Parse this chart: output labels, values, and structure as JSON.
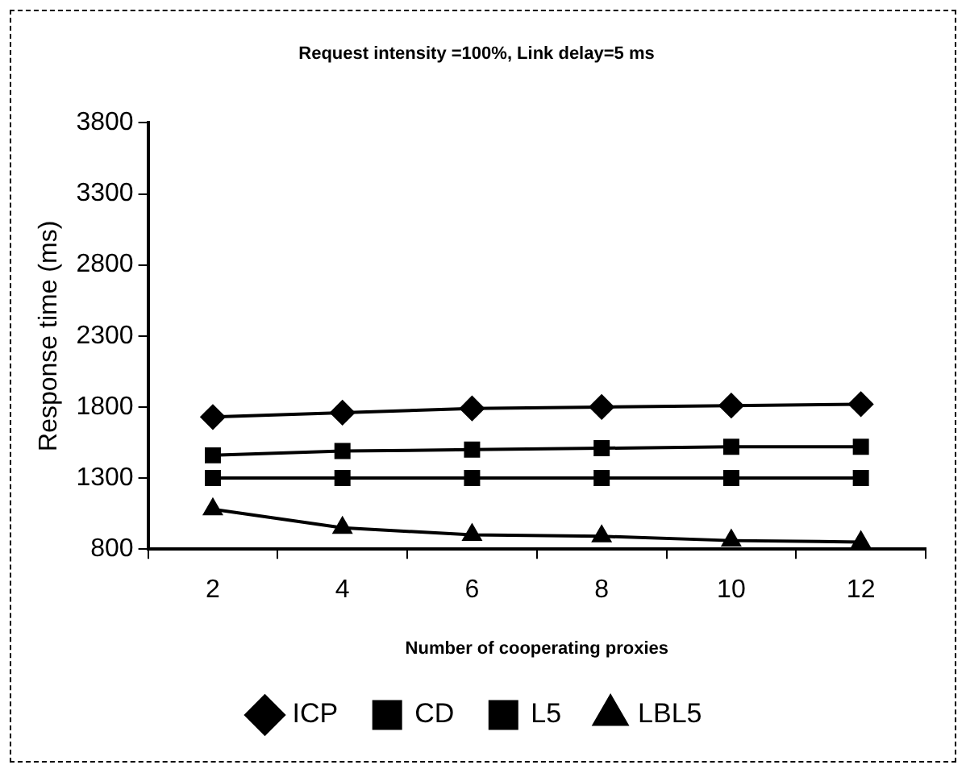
{
  "chart_data": {
    "type": "line",
    "title": "Request intensity =100%, Link delay=5 ms",
    "xlabel": "Number of cooperating proxies",
    "ylabel": "Response time (ms)",
    "categories": [
      "2",
      "4",
      "6",
      "8",
      "10",
      "12"
    ],
    "series": [
      {
        "name": "ICP",
        "color": "#000000",
        "marker": "diamond",
        "values": [
          1730,
          1760,
          1790,
          1800,
          1810,
          1820
        ]
      },
      {
        "name": "CD",
        "color": "#000000",
        "marker": "square",
        "values": [
          1460,
          1490,
          1500,
          1510,
          1520,
          1520
        ]
      },
      {
        "name": "L5",
        "color": "#000000",
        "marker": "square",
        "values": [
          1300,
          1300,
          1300,
          1300,
          1300,
          1300
        ]
      },
      {
        "name": "LBL5",
        "color": "#000000",
        "marker": "triangle",
        "values": [
          1080,
          950,
          900,
          890,
          860,
          850
        ]
      }
    ],
    "ylim": [
      800,
      3800
    ],
    "yticks": [
      800,
      1300,
      1800,
      2300,
      2800,
      3300,
      3800
    ],
    "grid": false,
    "legend": "bottom",
    "line_style": "solid"
  }
}
